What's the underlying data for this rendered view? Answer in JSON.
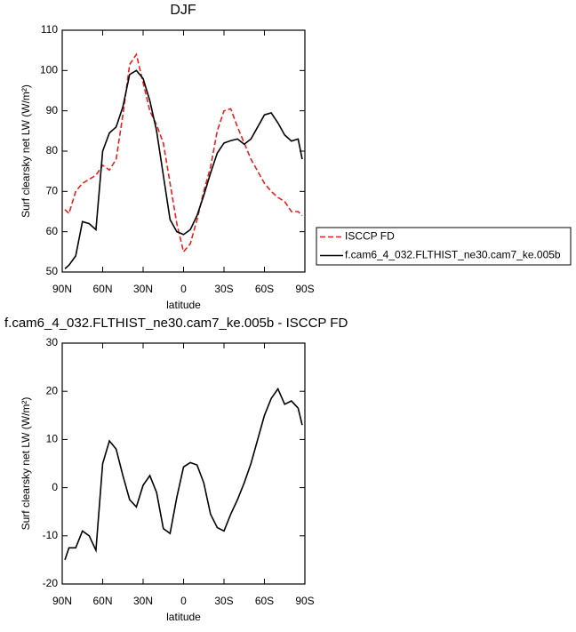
{
  "chart_data": [
    {
      "type": "line",
      "title": "DJF",
      "xlabel": "latitude",
      "ylabel": "Surf clearsky net LW (W/m²)",
      "x": [
        88,
        85,
        80,
        75,
        70,
        65,
        60,
        55,
        50,
        45,
        40,
        35,
        30,
        25,
        20,
        15,
        10,
        5,
        0,
        -5,
        -10,
        -15,
        -20,
        -25,
        -30,
        -35,
        -40,
        -45,
        -50,
        -55,
        -60,
        -65,
        -70,
        -75,
        -80,
        -85,
        -88
      ],
      "series": [
        {
          "name": "ISCCP FD",
          "color": "#e8201e",
          "line_style": "dashed",
          "values": [
            65.5,
            64.5,
            70,
            72,
            73,
            74,
            76.5,
            75.3,
            78,
            89,
            101.5,
            104,
            97,
            90,
            86.5,
            82,
            72,
            62,
            55,
            57,
            63,
            70,
            76,
            85,
            90,
            90.5,
            86,
            82,
            78,
            75,
            72,
            70,
            68.5,
            67.5,
            65,
            65,
            64
          ]
        },
        {
          "name": "f.cam6_4_032.FLTHIST_ne30.cam7_ke.005b",
          "color": "#000000",
          "line_style": "solid",
          "values": [
            50.8,
            51.7,
            54,
            62.5,
            62,
            60.5,
            80,
            84.5,
            86,
            91,
            99,
            100,
            98,
            92.5,
            85,
            74,
            63,
            60,
            59.3,
            60.5,
            64,
            69,
            74.5,
            79.5,
            82,
            82.6,
            83,
            81.7,
            83,
            86,
            89,
            89.5,
            87,
            84,
            82.5,
            83,
            78
          ]
        }
      ],
      "xlim": [
        90,
        -90
      ],
      "xticks": [
        {
          "value": 90,
          "label": "90N"
        },
        {
          "value": 60,
          "label": "60N"
        },
        {
          "value": 30,
          "label": "30N"
        },
        0,
        {
          "value": -30,
          "label": "30S"
        },
        {
          "value": -60,
          "label": "60S"
        },
        {
          "value": -90,
          "label": "90S"
        }
      ],
      "ylim": [
        50,
        110
      ],
      "yticks": [
        50,
        60,
        70,
        80,
        90,
        100,
        110
      ],
      "legend": "outside-right"
    },
    {
      "type": "line",
      "title": "f.cam6_4_032.FLTHIST_ne30.cam7_ke.005b - ISCCP FD",
      "xlabel": "latitude",
      "ylabel": "Surf clearsky net LW (W/m²)",
      "x": [
        88,
        85,
        80,
        75,
        70,
        65,
        60,
        55,
        50,
        45,
        40,
        35,
        30,
        25,
        20,
        15,
        10,
        5,
        0,
        -5,
        -10,
        -15,
        -20,
        -25,
        -30,
        -35,
        -40,
        -45,
        -50,
        -55,
        -60,
        -65,
        -70,
        -75,
        -80,
        -85,
        -88
      ],
      "series": [
        {
          "color": "#000000",
          "line_style": "solid",
          "values": [
            -15,
            -12.5,
            -12.5,
            -9,
            -10,
            -13,
            5,
            9.7,
            8,
            2.5,
            -2.5,
            -4,
            0.5,
            2.5,
            -1,
            -8.5,
            -9.5,
            -2,
            4.3,
            5.2,
            4.7,
            1,
            -5.5,
            -8.3,
            -9,
            -5.5,
            -2.5,
            1,
            5,
            10,
            15,
            18.5,
            20.5,
            17.3,
            18,
            16.5,
            13
          ]
        }
      ],
      "xlim": [
        90,
        -90
      ],
      "xticks": [
        {
          "value": 90,
          "label": "90N"
        },
        {
          "value": 60,
          "label": "60N"
        },
        {
          "value": 30,
          "label": "30N"
        },
        0,
        {
          "value": -30,
          "label": "30S"
        },
        {
          "value": -60,
          "label": "60S"
        },
        {
          "value": -90,
          "label": "90S"
        }
      ],
      "ylim": [
        -20,
        30
      ],
      "yticks": [
        -20,
        -10,
        0,
        10,
        20,
        30
      ]
    }
  ]
}
